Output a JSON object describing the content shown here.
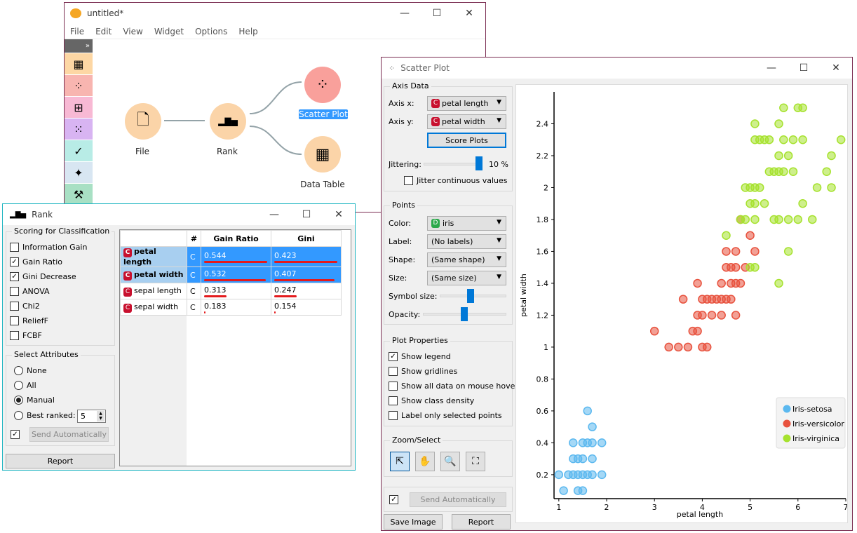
{
  "canvas": {
    "title": "untitled*",
    "menu": [
      "File",
      "Edit",
      "View",
      "Widget",
      "Options",
      "Help"
    ],
    "toolbox_icons": [
      "data-table-icon",
      "scatter-plot-icon",
      "tree-icon",
      "linear-projection-icon",
      "confusion-matrix-icon",
      "distances-icon",
      "worker-icon"
    ],
    "nodes": [
      {
        "label": "File",
        "icon": "file-icon"
      },
      {
        "label": "Rank",
        "icon": "rank-icon"
      },
      {
        "label": "Scatter Plot",
        "icon": "scatter-plot-icon"
      },
      {
        "label": "Data Table",
        "icon": "data-table-icon"
      }
    ]
  },
  "rank": {
    "title": "Rank",
    "scoring_group": "Scoring for Classification",
    "scorers": [
      {
        "label": "Information Gain",
        "checked": false
      },
      {
        "label": "Gain Ratio",
        "checked": true
      },
      {
        "label": "Gini Decrease",
        "checked": true
      },
      {
        "label": "ANOVA",
        "checked": false
      },
      {
        "label": "Chi2",
        "checked": false
      },
      {
        "label": "ReliefF",
        "checked": false
      },
      {
        "label": "FCBF",
        "checked": false
      }
    ],
    "select_group": "Select Attributes",
    "select_options": [
      {
        "label": "None",
        "selected": false
      },
      {
        "label": "All",
        "selected": false
      },
      {
        "label": "Manual",
        "selected": true
      },
      {
        "label": "Best ranked:",
        "selected": false
      }
    ],
    "best_ranked_value": "5",
    "send_auto": "Send Automatically",
    "report": "Report",
    "table": {
      "headers": [
        "",
        "#",
        "Gain Ratio",
        "Gini"
      ],
      "rows": [
        {
          "name": "petal length",
          "type": "C",
          "gain_ratio": "0.544",
          "gini": "0.423",
          "selected": true
        },
        {
          "name": "petal width",
          "type": "C",
          "gain_ratio": "0.532",
          "gini": "0.407",
          "selected": true
        },
        {
          "name": "sepal length",
          "type": "C",
          "gain_ratio": "0.313",
          "gini": "0.247",
          "selected": false
        },
        {
          "name": "sepal width",
          "type": "C",
          "gain_ratio": "0.183",
          "gini": "0.154",
          "selected": false
        }
      ]
    }
  },
  "scatter": {
    "title": "Scatter Plot",
    "axis_group": "Axis Data",
    "axis_x_label": "Axis x:",
    "axis_x_value": "petal length",
    "axis_y_label": "Axis y:",
    "axis_y_value": "petal width",
    "score_plots": "Score Plots",
    "jittering_label": "Jittering:",
    "jittering_value": "10 %",
    "jitter_continuous": "Jitter continuous values",
    "points_group": "Points",
    "color_label": "Color:",
    "color_value": "iris",
    "label_label": "Label:",
    "label_value": "(No labels)",
    "shape_label": "Shape:",
    "shape_value": "(Same shape)",
    "size_label": "Size:",
    "size_value": "(Same size)",
    "symbol_size_label": "Symbol size:",
    "opacity_label": "Opacity:",
    "plot_props_group": "Plot Properties",
    "plot_props": [
      {
        "label": "Show legend",
        "checked": true
      },
      {
        "label": "Show gridlines",
        "checked": false
      },
      {
        "label": "Show all data on mouse hover",
        "checked": false
      },
      {
        "label": "Show class density",
        "checked": false
      },
      {
        "label": "Label only selected points",
        "checked": false
      }
    ],
    "zoom_group": "Zoom/Select",
    "send_auto": "Send Automatically",
    "save_image": "Save Image",
    "report": "Report"
  },
  "colors": {
    "setosa": "#5bb8ef",
    "versicolor": "#e8523e",
    "virginica": "#a6e22e",
    "accent": "#0078d7"
  },
  "chart_data": {
    "type": "scatter",
    "title": "",
    "xlabel": "petal length",
    "ylabel": "petal width",
    "xlim": [
      0.9,
      7.0
    ],
    "ylim": [
      0.05,
      2.6
    ],
    "xticks": [
      1,
      2,
      3,
      4,
      5,
      6,
      7
    ],
    "yticks": [
      0.2,
      0.4,
      0.6,
      0.8,
      1,
      1.2,
      1.4,
      1.6,
      1.8,
      2,
      2.2,
      2.4
    ],
    "legend": [
      "Iris-setosa",
      "Iris-versicolor",
      "Iris-virginica"
    ],
    "legend_position": "right-middle",
    "series": [
      {
        "name": "Iris-setosa",
        "points": [
          [
            1.0,
            0.2
          ],
          [
            1.1,
            0.1
          ],
          [
            1.2,
            0.2
          ],
          [
            1.3,
            0.2
          ],
          [
            1.3,
            0.3
          ],
          [
            1.3,
            0.4
          ],
          [
            1.4,
            0.1
          ],
          [
            1.4,
            0.2
          ],
          [
            1.4,
            0.3
          ],
          [
            1.5,
            0.1
          ],
          [
            1.5,
            0.2
          ],
          [
            1.5,
            0.3
          ],
          [
            1.5,
            0.4
          ],
          [
            1.6,
            0.2
          ],
          [
            1.6,
            0.4
          ],
          [
            1.6,
            0.6
          ],
          [
            1.7,
            0.2
          ],
          [
            1.7,
            0.3
          ],
          [
            1.7,
            0.4
          ],
          [
            1.7,
            0.5
          ],
          [
            1.9,
            0.2
          ],
          [
            1.9,
            0.4
          ]
        ]
      },
      {
        "name": "Iris-versicolor",
        "points": [
          [
            3.0,
            1.1
          ],
          [
            3.3,
            1.0
          ],
          [
            3.5,
            1.0
          ],
          [
            3.6,
            1.3
          ],
          [
            3.7,
            1.0
          ],
          [
            3.8,
            1.1
          ],
          [
            3.9,
            1.1
          ],
          [
            3.9,
            1.2
          ],
          [
            3.9,
            1.4
          ],
          [
            4.0,
            1.0
          ],
          [
            4.0,
            1.2
          ],
          [
            4.0,
            1.3
          ],
          [
            4.1,
            1.0
          ],
          [
            4.1,
            1.3
          ],
          [
            4.2,
            1.2
          ],
          [
            4.2,
            1.3
          ],
          [
            4.3,
            1.3
          ],
          [
            4.4,
            1.2
          ],
          [
            4.4,
            1.3
          ],
          [
            4.4,
            1.4
          ],
          [
            4.5,
            1.3
          ],
          [
            4.5,
            1.5
          ],
          [
            4.5,
            1.6
          ],
          [
            4.6,
            1.3
          ],
          [
            4.6,
            1.4
          ],
          [
            4.6,
            1.5
          ],
          [
            4.7,
            1.2
          ],
          [
            4.7,
            1.4
          ],
          [
            4.7,
            1.5
          ],
          [
            4.7,
            1.6
          ],
          [
            4.8,
            1.4
          ],
          [
            4.8,
            1.8
          ],
          [
            4.9,
            1.5
          ],
          [
            5.0,
            1.7
          ],
          [
            5.1,
            1.6
          ]
        ]
      },
      {
        "name": "Iris-virginica",
        "points": [
          [
            4.5,
            1.7
          ],
          [
            4.8,
            1.8
          ],
          [
            4.9,
            1.8
          ],
          [
            4.9,
            2.0
          ],
          [
            5.0,
            1.5
          ],
          [
            5.0,
            1.9
          ],
          [
            5.0,
            2.0
          ],
          [
            5.1,
            1.5
          ],
          [
            5.1,
            1.8
          ],
          [
            5.1,
            1.9
          ],
          [
            5.1,
            2.0
          ],
          [
            5.1,
            2.3
          ],
          [
            5.1,
            2.4
          ],
          [
            5.2,
            2.0
          ],
          [
            5.2,
            2.3
          ],
          [
            5.3,
            1.9
          ],
          [
            5.3,
            2.3
          ],
          [
            5.4,
            2.1
          ],
          [
            5.4,
            2.3
          ],
          [
            5.5,
            1.8
          ],
          [
            5.5,
            2.1
          ],
          [
            5.6,
            1.4
          ],
          [
            5.6,
            1.8
          ],
          [
            5.6,
            2.1
          ],
          [
            5.6,
            2.2
          ],
          [
            5.6,
            2.4
          ],
          [
            5.7,
            2.1
          ],
          [
            5.7,
            2.3
          ],
          [
            5.7,
            2.5
          ],
          [
            5.8,
            1.6
          ],
          [
            5.8,
            1.8
          ],
          [
            5.8,
            2.2
          ],
          [
            5.9,
            2.1
          ],
          [
            5.9,
            2.3
          ],
          [
            6.0,
            1.8
          ],
          [
            6.0,
            2.5
          ],
          [
            6.1,
            1.9
          ],
          [
            6.1,
            2.3
          ],
          [
            6.1,
            2.5
          ],
          [
            6.3,
            1.8
          ],
          [
            6.4,
            2.0
          ],
          [
            6.6,
            2.1
          ],
          [
            6.7,
            2.0
          ],
          [
            6.7,
            2.2
          ],
          [
            6.9,
            2.3
          ]
        ]
      }
    ]
  }
}
